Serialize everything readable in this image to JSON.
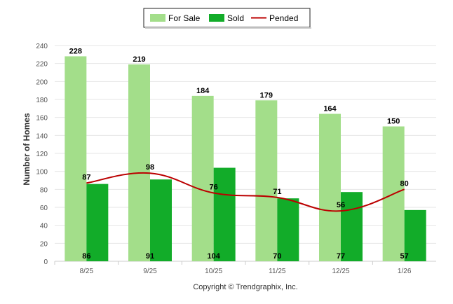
{
  "chart_data": {
    "type": "bar",
    "categories": [
      "8/25",
      "9/25",
      "10/25",
      "11/25",
      "12/25",
      "1/26"
    ],
    "series": [
      {
        "name": "For Sale",
        "kind": "bar",
        "color": "#a3de8a",
        "values": [
          228,
          219,
          184,
          179,
          164,
          150
        ]
      },
      {
        "name": "Sold",
        "kind": "bar",
        "color": "#12ac29",
        "values": [
          86,
          91,
          104,
          70,
          77,
          57
        ]
      },
      {
        "name": "Pended",
        "kind": "line",
        "color": "#bb0000",
        "values": [
          87,
          98,
          76,
          71,
          56,
          80
        ]
      }
    ],
    "ylabel": "Number of Homes",
    "xlabel": "",
    "ylim": [
      0,
      240
    ],
    "yticks": [
      0,
      20,
      40,
      60,
      80,
      100,
      120,
      140,
      160,
      180,
      200,
      220,
      240
    ],
    "grid": true,
    "legend_position": "top-center",
    "credit": "Copyright © Trendgraphix, Inc."
  }
}
